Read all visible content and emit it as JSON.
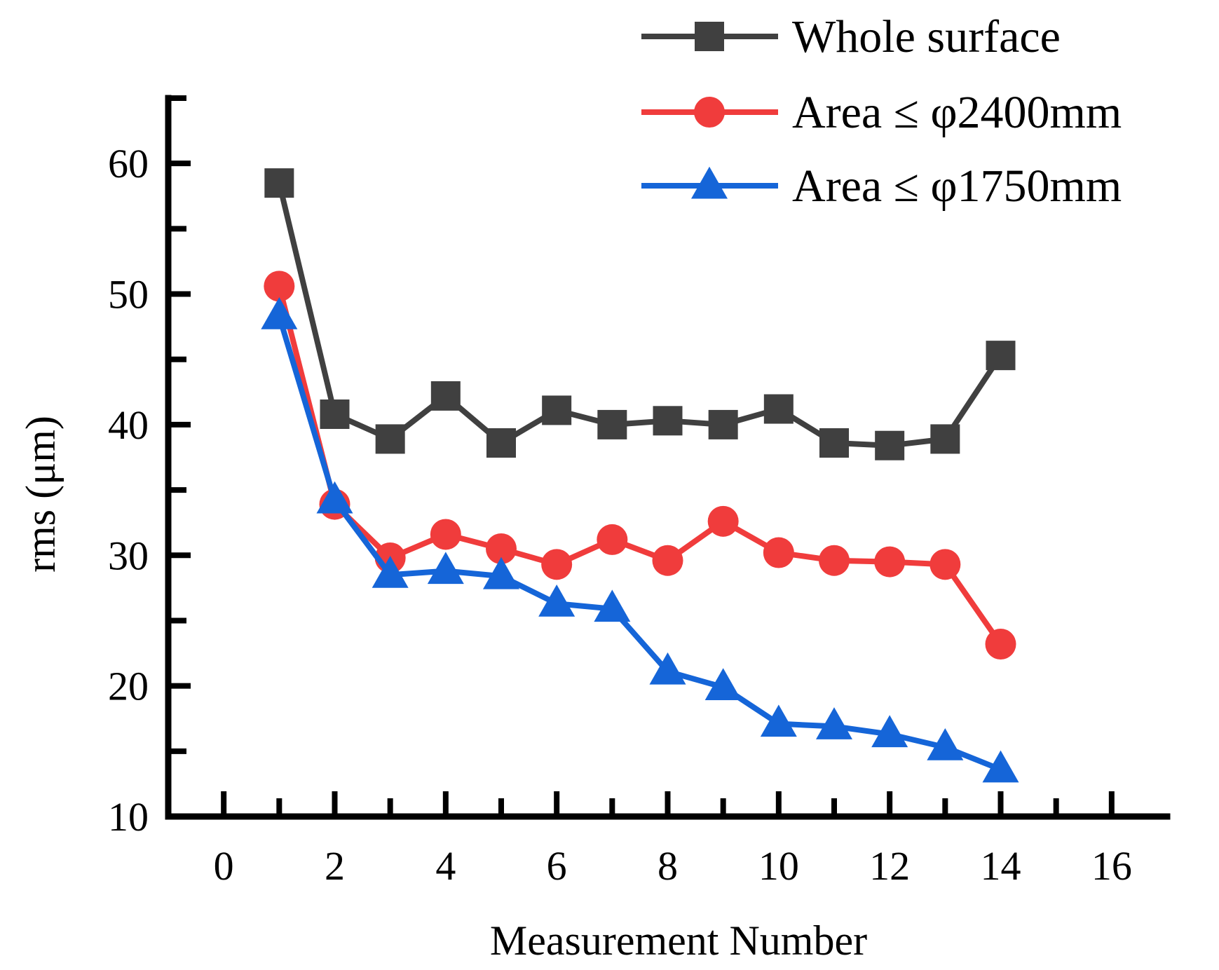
{
  "chart_data": {
    "type": "line",
    "title": "",
    "xlabel": "Measurement Number",
    "ylabel": "rms (μm)",
    "xlim": [
      -1,
      17
    ],
    "ylim": [
      10,
      65
    ],
    "xticks": [
      0,
      2,
      4,
      6,
      8,
      10,
      12,
      14,
      16
    ],
    "yticks": [
      10,
      20,
      30,
      40,
      50,
      60
    ],
    "legend_position": "top-right",
    "x": [
      1,
      2,
      3,
      4,
      5,
      6,
      7,
      8,
      9,
      10,
      11,
      12,
      13,
      14
    ],
    "series": [
      {
        "name": "Whole surface",
        "color": "#404040",
        "marker": "square",
        "values": [
          58.5,
          40.8,
          38.9,
          42.2,
          38.6,
          41.1,
          40.0,
          40.3,
          40.0,
          41.2,
          38.6,
          38.4,
          38.9,
          45.3
        ]
      },
      {
        "name": "Area ≤ φ2400mm",
        "color": "#f03c3c",
        "marker": "circle",
        "values": [
          50.6,
          33.9,
          29.8,
          31.6,
          30.5,
          29.3,
          31.2,
          29.6,
          32.6,
          30.2,
          29.6,
          29.5,
          29.3,
          23.2
        ]
      },
      {
        "name": "Area ≤ φ1750mm",
        "color": "#1565d8",
        "marker": "triangle",
        "values": [
          48.3,
          34.2,
          28.5,
          28.8,
          28.4,
          26.3,
          25.9,
          21.1,
          19.9,
          17.1,
          16.9,
          16.3,
          15.3,
          13.6
        ]
      }
    ]
  }
}
